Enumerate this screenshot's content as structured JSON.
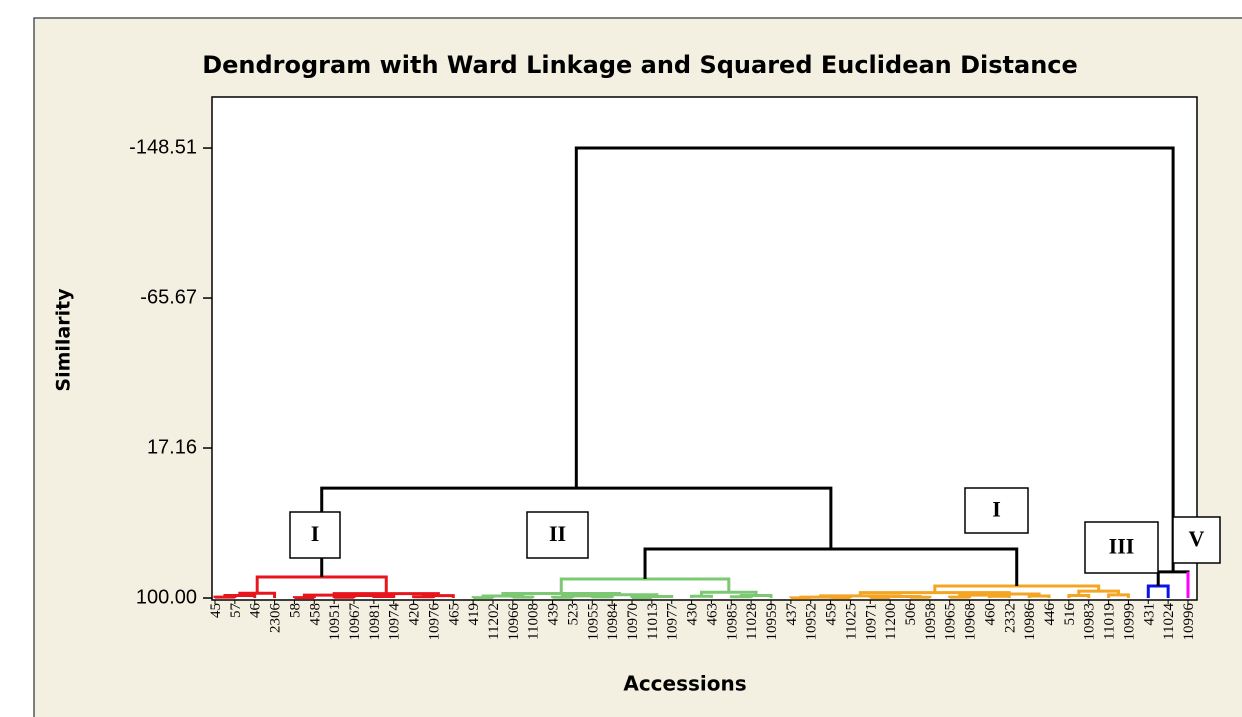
{
  "chart_data": {
    "type": "dendrogram",
    "title": "Dendrogram with Ward Linkage and Squared Euclidean Distance",
    "x_label": "Accessions",
    "y_label": "Similarity",
    "ylim": [
      101.1,
      -176.7
    ],
    "yticks": [
      -148.51,
      -65.67,
      17.16,
      {
        "value": 100,
        "label": "100.00"
      }
    ],
    "categories": [
      "45",
      "57",
      "46",
      "2306",
      "58",
      "458",
      "10951",
      "10967",
      "10981",
      "10974",
      "420",
      "10976",
      "465",
      "419",
      "11202",
      "10966",
      "11008",
      "439",
      "523",
      "10955",
      "10984",
      "10970",
      "11013",
      "10977",
      "430",
      "463",
      "10985",
      "11028",
      "10959",
      "437",
      "10952",
      "459",
      "11025",
      "10971",
      "11200",
      "506",
      "10958",
      "10965",
      "10968",
      "460",
      "2332",
      "10986",
      "446",
      "516",
      "10983",
      "11019",
      "10999",
      "431",
      "11024",
      "10996"
    ],
    "merges": [
      {
        "left": 0,
        "right": 1,
        "height": 99.5,
        "color": "#e8161c"
      },
      {
        "left": 50,
        "right": 2,
        "height": 98.6,
        "color": "#e8161c"
      },
      {
        "left": 51,
        "right": 3,
        "height": 97.4,
        "color": "#e8161c"
      },
      {
        "left": 4,
        "right": 5,
        "height": 99.8,
        "color": "#e8161c"
      },
      {
        "left": 6,
        "right": 7,
        "height": 99.6,
        "color": "#e8161c"
      },
      {
        "left": 8,
        "right": 9,
        "height": 99.2,
        "color": "#e8161c"
      },
      {
        "left": 54,
        "right": 55,
        "height": 98.6,
        "color": "#e8161c"
      },
      {
        "left": 53,
        "right": 56,
        "height": 98.4,
        "color": "#e8161c"
      },
      {
        "left": 10,
        "right": 11,
        "height": 99.3,
        "color": "#e8161c"
      },
      {
        "left": 58,
        "right": 12,
        "height": 98.7,
        "color": "#e8161c"
      },
      {
        "left": 57,
        "right": 59,
        "height": 97.6,
        "color": "#e8161c"
      },
      {
        "left": 52,
        "right": 60,
        "height": 88.4,
        "color": "#e8161c"
      },
      {
        "left": 13,
        "right": 14,
        "height": 99.8,
        "color": "#7dc873"
      },
      {
        "left": 15,
        "right": 16,
        "height": 99.5,
        "color": "#7dc873"
      },
      {
        "left": 62,
        "right": 63,
        "height": 98.9,
        "color": "#7dc873"
      },
      {
        "left": 17,
        "right": 18,
        "height": 99.6,
        "color": "#7dc873"
      },
      {
        "left": 19,
        "right": 20,
        "height": 99.4,
        "color": "#7dc873"
      },
      {
        "left": 65,
        "right": 66,
        "height": 98.8,
        "color": "#7dc873"
      },
      {
        "left": 21,
        "right": 22,
        "height": 99.7,
        "color": "#7dc873"
      },
      {
        "left": 68,
        "right": 23,
        "height": 99.2,
        "color": "#7dc873"
      },
      {
        "left": 67,
        "right": 69,
        "height": 98.2,
        "color": "#7dc873"
      },
      {
        "left": 64,
        "right": 70,
        "height": 97.5,
        "color": "#7dc873"
      },
      {
        "left": 24,
        "right": 25,
        "height": 99.0,
        "color": "#7dc873"
      },
      {
        "left": 26,
        "right": 27,
        "height": 99.3,
        "color": "#7dc873"
      },
      {
        "left": 73,
        "right": 28,
        "height": 98.6,
        "color": "#7dc873"
      },
      {
        "left": 72,
        "right": 74,
        "height": 96.8,
        "color": "#7dc873"
      },
      {
        "left": 71,
        "right": 75,
        "height": 89.5,
        "color": "#7dc873"
      },
      {
        "left": 29,
        "right": 30,
        "height": 99.9,
        "color": "#f5a524"
      },
      {
        "left": 31,
        "right": 32,
        "height": 99.8,
        "color": "#f5a524"
      },
      {
        "left": 77,
        "right": 78,
        "height": 99.5,
        "color": "#f5a524"
      },
      {
        "left": 33,
        "right": 34,
        "height": 99.7,
        "color": "#f5a524"
      },
      {
        "left": 35,
        "right": 36,
        "height": 99.6,
        "color": "#f5a524"
      },
      {
        "left": 80,
        "right": 81,
        "height": 99.2,
        "color": "#f5a524"
      },
      {
        "left": 79,
        "right": 82,
        "height": 98.8,
        "color": "#f5a524"
      },
      {
        "left": 37,
        "right": 38,
        "height": 99.5,
        "color": "#f5a524"
      },
      {
        "left": 39,
        "right": 40,
        "height": 99.0,
        "color": "#f5a524"
      },
      {
        "left": 84,
        "right": 85,
        "height": 98.4,
        "color": "#f5a524"
      },
      {
        "left": 41,
        "right": 42,
        "height": 98.9,
        "color": "#f5a524"
      },
      {
        "left": 86,
        "right": 87,
        "height": 97.8,
        "color": "#f5a524"
      },
      {
        "left": 83,
        "right": 88,
        "height": 97.0,
        "color": "#f5a524"
      },
      {
        "left": 43,
        "right": 44,
        "height": 98.6,
        "color": "#f5a524"
      },
      {
        "left": 45,
        "right": 46,
        "height": 98.3,
        "color": "#f5a524"
      },
      {
        "left": 90,
        "right": 91,
        "height": 96.2,
        "color": "#f5a524"
      },
      {
        "left": 89,
        "right": 92,
        "height": 93.4,
        "color": "#f5a524"
      },
      {
        "left": 47,
        "right": 48,
        "height": 93.4,
        "color": "#0a14e6"
      },
      {
        "left": 94,
        "right": 49,
        "height": 85.6,
        "color": "#000000",
        "right_color": "#ff00ff"
      },
      {
        "left": 76,
        "right": 93,
        "height": 72.9,
        "color": "#000000"
      },
      {
        "left": 61,
        "right": 96,
        "height": 39.3,
        "color": "#000000"
      },
      {
        "left": 97,
        "right": 95,
        "height": -148.51,
        "color": "#000000"
      }
    ],
    "annotations": [
      "I",
      "II",
      "I",
      "III",
      "V"
    ]
  }
}
